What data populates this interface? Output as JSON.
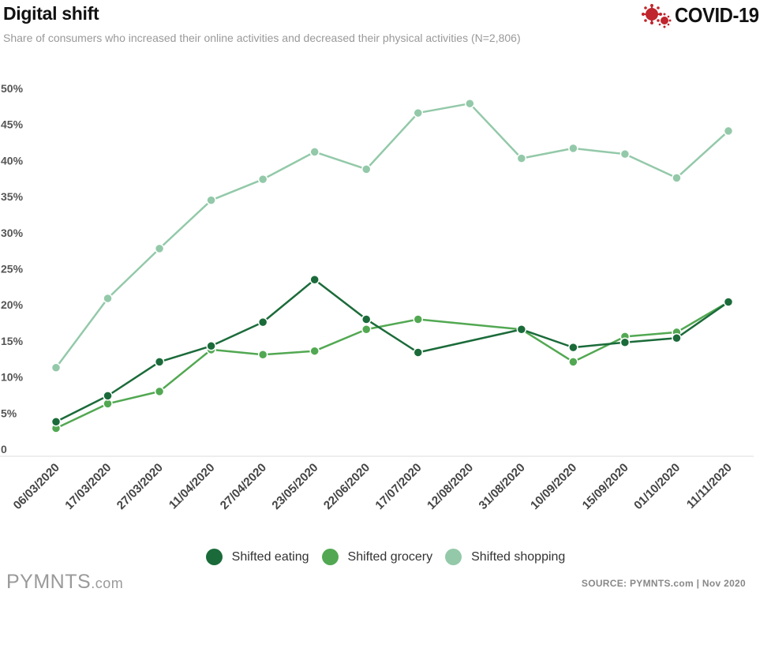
{
  "header": {
    "title": "Digital shift",
    "subtitle": "Share of consumers who increased their online activities and decreased their physical activities (N=2,806)",
    "badge": "COVID-19",
    "badge_icon": "virus-icon"
  },
  "footer": {
    "brand": "PYMNTS",
    "brand_suffix": ".com",
    "source": "SOURCE: PYMNTS.com  |  Nov 2020"
  },
  "colors": {
    "eating": "#1b6b3a",
    "grocery": "#52a852",
    "shopping": "#93c9a9",
    "virus": "#c0262d"
  },
  "chart_data": {
    "type": "line",
    "title": "Digital shift",
    "categories": [
      "06/03/2020",
      "17/03/2020",
      "27/03/2020",
      "11/04/2020",
      "27/04/2020",
      "23/05/2020",
      "22/06/2020",
      "17/07/2020",
      "12/08/2020",
      "31/08/2020",
      "10/09/2020",
      "15/09/2020",
      "01/10/2020",
      "11/11/2020"
    ],
    "y_ticks": [
      "0",
      "5%",
      "10%",
      "15%",
      "20%",
      "25%",
      "30%",
      "35%",
      "40%",
      "45%",
      "50%"
    ],
    "ylim": [
      0,
      50
    ],
    "grid": false,
    "legend_position": "bottom-center",
    "series": [
      {
        "name": "Shifted eating",
        "color": "#1b6b3a",
        "values": [
          3.8,
          7.4,
          12.1,
          14.3,
          17.6,
          23.5,
          18.0,
          13.4,
          null,
          16.6,
          14.1,
          14.8,
          15.4,
          20.4
        ]
      },
      {
        "name": "Shifted grocery",
        "color": "#52a852",
        "values": [
          2.9,
          6.3,
          8.0,
          13.8,
          13.1,
          13.6,
          16.6,
          18.0,
          null,
          16.6,
          12.1,
          15.6,
          16.2,
          20.4
        ]
      },
      {
        "name": "Shifted shopping",
        "color": "#93c9a9",
        "values": [
          11.3,
          20.9,
          27.8,
          34.5,
          37.4,
          41.2,
          38.8,
          46.6,
          47.9,
          40.3,
          41.7,
          40.9,
          37.6,
          44.1
        ]
      }
    ]
  }
}
